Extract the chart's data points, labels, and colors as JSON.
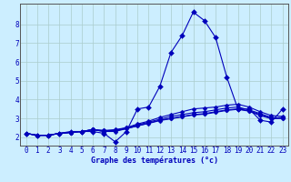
{
  "xlabel": "Graphe des températures (°c)",
  "x_ticks": [
    0,
    1,
    2,
    3,
    4,
    5,
    6,
    7,
    8,
    9,
    10,
    11,
    12,
    13,
    14,
    15,
    16,
    17,
    18,
    19,
    20,
    21,
    22,
    23
  ],
  "y_ticks": [
    2,
    3,
    4,
    5,
    6,
    7,
    8
  ],
  "ylim": [
    1.55,
    9.1
  ],
  "xlim": [
    -0.5,
    23.5
  ],
  "background_color": "#cceeff",
  "line_color": "#0000bb",
  "grid_color": "#aacccc",
  "line1": [
    2.2,
    2.1,
    2.1,
    2.2,
    2.3,
    2.3,
    2.3,
    2.2,
    1.75,
    2.3,
    3.5,
    3.6,
    4.7,
    6.5,
    7.4,
    8.65,
    8.2,
    7.3,
    5.2,
    3.5,
    3.5,
    2.9,
    2.8,
    3.5
  ],
  "line2": [
    2.2,
    2.1,
    2.1,
    2.2,
    2.25,
    2.3,
    2.4,
    2.35,
    2.35,
    2.5,
    2.7,
    2.85,
    3.05,
    3.2,
    3.35,
    3.5,
    3.55,
    3.6,
    3.7,
    3.75,
    3.6,
    3.35,
    3.15,
    3.1
  ],
  "line3": [
    2.2,
    2.1,
    2.1,
    2.2,
    2.25,
    2.3,
    2.4,
    2.35,
    2.4,
    2.5,
    2.65,
    2.8,
    2.95,
    3.1,
    3.2,
    3.3,
    3.35,
    3.45,
    3.55,
    3.6,
    3.45,
    3.25,
    3.05,
    3.0
  ],
  "line4": [
    2.2,
    2.1,
    2.1,
    2.2,
    2.25,
    2.3,
    2.4,
    2.3,
    2.35,
    2.45,
    2.6,
    2.75,
    2.9,
    3.0,
    3.1,
    3.2,
    3.25,
    3.35,
    3.45,
    3.5,
    3.4,
    3.2,
    3.0,
    3.05
  ],
  "line5": [
    2.2,
    2.1,
    2.1,
    2.2,
    2.25,
    2.3,
    2.4,
    2.3,
    2.3,
    2.45,
    2.6,
    2.73,
    2.88,
    2.98,
    3.08,
    3.18,
    3.22,
    3.32,
    3.42,
    3.48,
    3.38,
    3.15,
    2.98,
    3.0
  ]
}
